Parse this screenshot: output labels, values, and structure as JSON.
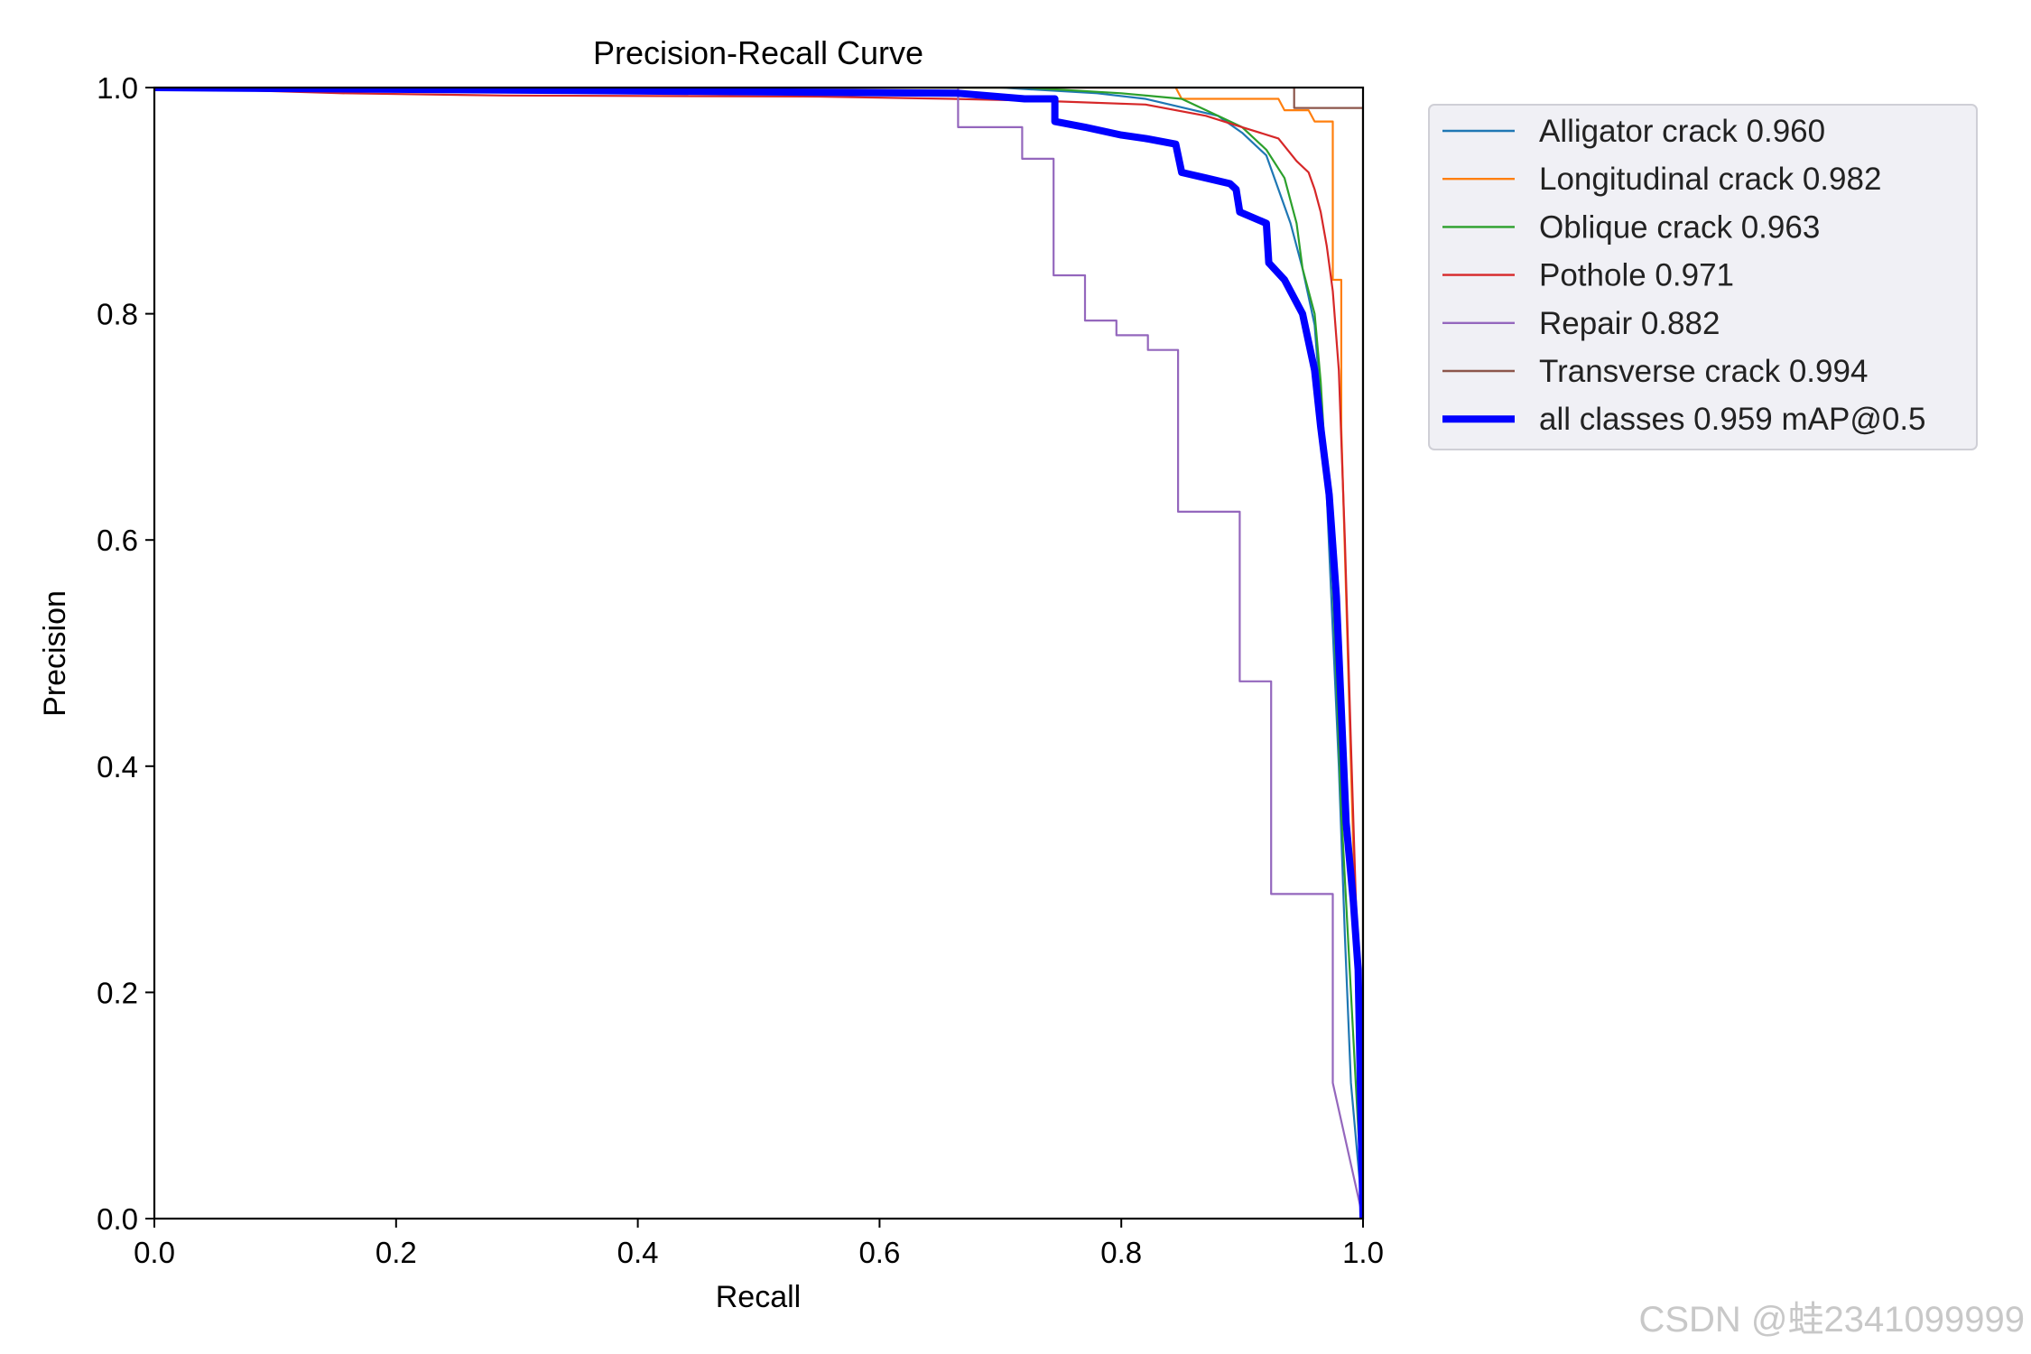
{
  "chart_data": {
    "type": "line",
    "title": "Precision-Recall Curve",
    "xlabel": "Recall",
    "ylabel": "Precision",
    "xlim": [
      0,
      1
    ],
    "ylim": [
      0,
      1
    ],
    "xticks": [
      "0.0",
      "0.2",
      "0.4",
      "0.6",
      "0.8",
      "1.0"
    ],
    "yticks": [
      "0.0",
      "0.2",
      "0.4",
      "0.6",
      "0.8",
      "1.0"
    ],
    "legend_position": "outside-top-right",
    "series": [
      {
        "name": "Alligator crack 0.960",
        "color": "#1f77b4",
        "width": "thin",
        "points": [
          [
            0,
            1
          ],
          [
            0.7,
            1
          ],
          [
            0.78,
            0.995
          ],
          [
            0.82,
            0.99
          ],
          [
            0.86,
            0.98
          ],
          [
            0.88,
            0.975
          ],
          [
            0.9,
            0.96
          ],
          [
            0.92,
            0.94
          ],
          [
            0.93,
            0.91
          ],
          [
            0.94,
            0.88
          ],
          [
            0.95,
            0.84
          ],
          [
            0.96,
            0.79
          ],
          [
            0.965,
            0.72
          ],
          [
            0.97,
            0.64
          ],
          [
            0.975,
            0.52
          ],
          [
            0.98,
            0.4
          ],
          [
            0.985,
            0.25
          ],
          [
            0.99,
            0.12
          ],
          [
            1.0,
            0.0
          ]
        ]
      },
      {
        "name": "Longitudinal crack 0.982",
        "color": "#ff7f0e",
        "width": "thin",
        "points": [
          [
            0,
            1
          ],
          [
            0.845,
            1
          ],
          [
            0.85,
            0.99
          ],
          [
            0.93,
            0.99
          ],
          [
            0.935,
            0.98
          ],
          [
            0.955,
            0.98
          ],
          [
            0.96,
            0.97
          ],
          [
            0.975,
            0.97
          ],
          [
            0.975,
            0.83
          ],
          [
            0.982,
            0.83
          ],
          [
            0.982,
            0.7
          ],
          [
            0.986,
            0.55
          ],
          [
            0.99,
            0.4
          ],
          [
            0.995,
            0.22
          ],
          [
            1.0,
            0.0
          ]
        ]
      },
      {
        "name": "Oblique crack 0.963",
        "color": "#2ca02c",
        "width": "thin",
        "points": [
          [
            0,
            1
          ],
          [
            0.72,
            1
          ],
          [
            0.8,
            0.995
          ],
          [
            0.85,
            0.99
          ],
          [
            0.88,
            0.975
          ],
          [
            0.9,
            0.965
          ],
          [
            0.92,
            0.945
          ],
          [
            0.935,
            0.92
          ],
          [
            0.945,
            0.88
          ],
          [
            0.95,
            0.84
          ],
          [
            0.96,
            0.8
          ],
          [
            0.965,
            0.74
          ],
          [
            0.97,
            0.65
          ],
          [
            0.975,
            0.56
          ],
          [
            0.978,
            0.48
          ],
          [
            0.982,
            0.36
          ],
          [
            0.99,
            0.2
          ],
          [
            1.0,
            0.0
          ]
        ]
      },
      {
        "name": "Pothole 0.971",
        "color": "#d62728",
        "width": "thin",
        "points": [
          [
            0,
            1
          ],
          [
            0.155,
            0.995
          ],
          [
            0.29,
            0.993
          ],
          [
            0.55,
            0.992
          ],
          [
            0.66,
            0.99
          ],
          [
            0.74,
            0.988
          ],
          [
            0.82,
            0.985
          ],
          [
            0.87,
            0.975
          ],
          [
            0.9,
            0.965
          ],
          [
            0.93,
            0.955
          ],
          [
            0.945,
            0.935
          ],
          [
            0.955,
            0.925
          ],
          [
            0.96,
            0.91
          ],
          [
            0.965,
            0.89
          ],
          [
            0.97,
            0.86
          ],
          [
            0.975,
            0.82
          ],
          [
            0.98,
            0.75
          ],
          [
            0.985,
            0.6
          ],
          [
            0.99,
            0.42
          ],
          [
            0.995,
            0.25
          ],
          [
            1.0,
            0.0
          ]
        ]
      },
      {
        "name": "Repair 0.882",
        "color": "#9467bd",
        "width": "thin",
        "points": [
          [
            0,
            1
          ],
          [
            0.665,
            1
          ],
          [
            0.665,
            0.965
          ],
          [
            0.718,
            0.965
          ],
          [
            0.718,
            0.937
          ],
          [
            0.744,
            0.937
          ],
          [
            0.744,
            0.834
          ],
          [
            0.77,
            0.834
          ],
          [
            0.77,
            0.794
          ],
          [
            0.796,
            0.794
          ],
          [
            0.796,
            0.781
          ],
          [
            0.822,
            0.781
          ],
          [
            0.822,
            0.768
          ],
          [
            0.847,
            0.768
          ],
          [
            0.847,
            0.625
          ],
          [
            0.898,
            0.625
          ],
          [
            0.898,
            0.475
          ],
          [
            0.924,
            0.475
          ],
          [
            0.924,
            0.287
          ],
          [
            0.975,
            0.287
          ],
          [
            0.975,
            0.12
          ],
          [
            1.0,
            0.0
          ]
        ]
      },
      {
        "name": "Transverse crack 0.994",
        "color": "#8c564b",
        "width": "thin",
        "points": [
          [
            0,
            1
          ],
          [
            0.943,
            1
          ],
          [
            0.943,
            0.982
          ],
          [
            1.0,
            0.982
          ],
          [
            1.0,
            0.0
          ]
        ]
      },
      {
        "name": "all classes 0.959 mAP@0.5",
        "color": "#0000ff",
        "width": "thick",
        "points": [
          [
            0,
            1
          ],
          [
            0.665,
            0.995
          ],
          [
            0.72,
            0.99
          ],
          [
            0.745,
            0.99
          ],
          [
            0.745,
            0.97
          ],
          [
            0.77,
            0.965
          ],
          [
            0.8,
            0.958
          ],
          [
            0.82,
            0.955
          ],
          [
            0.845,
            0.95
          ],
          [
            0.85,
            0.925
          ],
          [
            0.87,
            0.92
          ],
          [
            0.89,
            0.915
          ],
          [
            0.895,
            0.91
          ],
          [
            0.898,
            0.89
          ],
          [
            0.92,
            0.88
          ],
          [
            0.922,
            0.845
          ],
          [
            0.935,
            0.83
          ],
          [
            0.95,
            0.8
          ],
          [
            0.96,
            0.75
          ],
          [
            0.965,
            0.7
          ],
          [
            0.972,
            0.64
          ],
          [
            0.978,
            0.55
          ],
          [
            0.982,
            0.45
          ],
          [
            0.986,
            0.35
          ],
          [
            0.992,
            0.28
          ],
          [
            0.996,
            0.22
          ],
          [
            1.0,
            0.0
          ]
        ]
      }
    ],
    "watermark": "CSDN @蛙2341099999"
  }
}
